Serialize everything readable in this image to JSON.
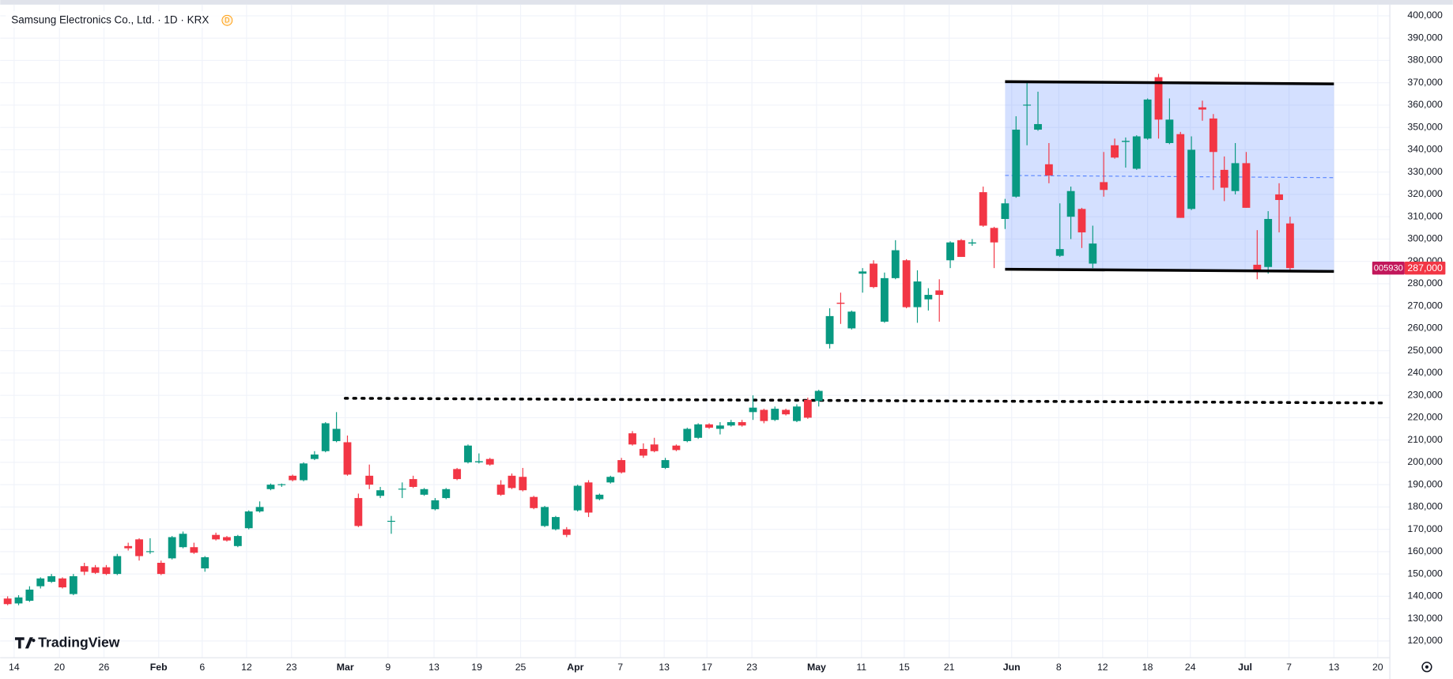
{
  "chart_data": {
    "type": "candlestick",
    "title": "Samsung Electronics Co., Ltd. · 1D · KRX",
    "badge": "D",
    "brand": "TradingView",
    "up_color": "#089981",
    "down_color": "#f23645",
    "grid": true,
    "xlim": [
      -0.68,
      126.1
    ],
    "ylim": [
      112500,
      405000
    ],
    "x": [
      0,
      1,
      2,
      3,
      4,
      5,
      6,
      7,
      8,
      9,
      10,
      11,
      12,
      13,
      14,
      15,
      16,
      17,
      18,
      19,
      20,
      21,
      22,
      23,
      24,
      25,
      26,
      27,
      28,
      29,
      30,
      31,
      32,
      33,
      34,
      35,
      36,
      37,
      38,
      39,
      40,
      41,
      42,
      43,
      44,
      45,
      46,
      47,
      48,
      49,
      50,
      51,
      52,
      53,
      54,
      55,
      56,
      57,
      58,
      59,
      60,
      61,
      62,
      63,
      64,
      65,
      66,
      67,
      68,
      69,
      70,
      71,
      72,
      73,
      74,
      75,
      76,
      77,
      78,
      79,
      80,
      81,
      82,
      83,
      84,
      85,
      86,
      87,
      88,
      89,
      90,
      91,
      92,
      93,
      94,
      95,
      96,
      97,
      98,
      99,
      100,
      101,
      102,
      103,
      104,
      105,
      106,
      107,
      108,
      109,
      110,
      111,
      112,
      113,
      114,
      115,
      116,
      117
    ],
    "open": [
      139000,
      136800,
      138000,
      144500,
      146500,
      148000,
      141000,
      153500,
      153000,
      153000,
      150000,
      162500,
      165500,
      160000,
      155000,
      157000,
      162000,
      162000,
      152500,
      167500,
      166500,
      162500,
      170500,
      178000,
      188000,
      189800,
      194000,
      192000,
      201500,
      205000,
      209500,
      209000,
      184000,
      194000,
      185000,
      173500,
      188000,
      192500,
      185500,
      179000,
      184000,
      197000,
      200000,
      200000,
      201500,
      190000,
      194000,
      193500,
      184500,
      171500,
      170000,
      170000,
      178500,
      191000,
      183500,
      191000,
      201000,
      213000,
      206000,
      208000,
      197500,
      207500,
      209500,
      211000,
      217000,
      215000,
      216500,
      218000,
      222500,
      223500,
      219000,
      223500,
      218500,
      228000,
      227500,
      253000,
      271500,
      260000,
      284500,
      289000,
      263000,
      282500,
      290500,
      269500,
      273000,
      277000,
      290500,
      299500,
      298000,
      321000,
      305000,
      309000,
      319000,
      360000,
      349000,
      333500,
      292500,
      310000,
      313500,
      289000,
      325500,
      342000,
      343500,
      331500,
      345000,
      372500,
      343000,
      347000,
      313500,
      359000,
      354000,
      331000,
      321500,
      334000,
      288500,
      287500,
      320000,
      307000
    ],
    "high": [
      140000,
      140500,
      144500,
      148500,
      150000,
      148500,
      150000,
      155000,
      154000,
      154000,
      159000,
      164000,
      166000,
      166000,
      156000,
      167000,
      169000,
      164000,
      158000,
      168500,
      167000,
      167500,
      178500,
      182500,
      190500,
      190500,
      194500,
      200000,
      205000,
      218000,
      222500,
      212000,
      186000,
      199000,
      189000,
      176000,
      191000,
      194000,
      188500,
      184000,
      188500,
      197500,
      208000,
      204000,
      202000,
      192000,
      195000,
      197500,
      185000,
      180500,
      176000,
      171000,
      190000,
      192000,
      186000,
      194000,
      202000,
      214000,
      208500,
      211000,
      202000,
      208000,
      215500,
      217500,
      217500,
      218000,
      219000,
      219000,
      230000,
      224000,
      225000,
      224000,
      226000,
      229000,
      232500,
      269000,
      276000,
      268000,
      287000,
      290500,
      285000,
      299500,
      291000,
      286000,
      278000,
      282000,
      299000,
      300000,
      300000,
      323500,
      305500,
      318000,
      355000,
      370000,
      366000,
      343000,
      316000,
      323500,
      314000,
      306000,
      339000,
      345000,
      345500,
      346500,
      363000,
      374000,
      363000,
      348000,
      346000,
      362000,
      356000,
      337000,
      343000,
      339000,
      304000,
      312500,
      325000,
      310000
    ],
    "low": [
      136000,
      136000,
      137500,
      143500,
      146000,
      143500,
      140500,
      149500,
      150000,
      149500,
      149500,
      160500,
      156000,
      159000,
      149500,
      156500,
      161500,
      159000,
      151000,
      165000,
      164500,
      162000,
      170000,
      177500,
      187500,
      189000,
      191500,
      191500,
      201000,
      204500,
      209000,
      194000,
      171000,
      188000,
      184000,
      168000,
      184000,
      188500,
      185000,
      178500,
      183500,
      192000,
      199500,
      199500,
      198500,
      185000,
      188000,
      187000,
      179000,
      171000,
      169500,
      166500,
      178000,
      175500,
      183000,
      190500,
      195000,
      207500,
      202000,
      204500,
      197000,
      205000,
      209000,
      210500,
      215000,
      212500,
      216000,
      216000,
      219000,
      217500,
      218500,
      221000,
      218000,
      219500,
      225000,
      251000,
      262000,
      259500,
      276000,
      278000,
      262500,
      282000,
      269000,
      262500,
      268000,
      263000,
      287000,
      292000,
      297000,
      305500,
      287000,
      304500,
      318500,
      342000,
      348500,
      325000,
      292000,
      300000,
      296000,
      287000,
      319000,
      336000,
      332000,
      331000,
      344500,
      345000,
      342500,
      309500,
      313000,
      353000,
      322000,
      317000,
      320000,
      314000,
      282000,
      284500,
      303000,
      286000
    ],
    "close": [
      136500,
      139500,
      143000,
      148000,
      149000,
      144000,
      149000,
      151000,
      150500,
      150000,
      158000,
      161500,
      158000,
      160200,
      150000,
      166500,
      168000,
      159500,
      157500,
      165500,
      165000,
      167000,
      178000,
      180000,
      190000,
      190200,
      192000,
      199500,
      203500,
      217500,
      215000,
      194500,
      171500,
      190000,
      187500,
      173800,
      188200,
      189000,
      188000,
      183000,
      188000,
      192500,
      207500,
      200500,
      199000,
      185500,
      188500,
      187500,
      179500,
      180000,
      175500,
      167500,
      189500,
      177500,
      185500,
      193500,
      195500,
      208000,
      203000,
      205000,
      201000,
      205500,
      215000,
      217000,
      215500,
      216500,
      218000,
      216500,
      224500,
      218500,
      224000,
      221500,
      225000,
      220000,
      232000,
      265500,
      271000,
      267500,
      285500,
      278500,
      282500,
      295000,
      269500,
      281000,
      275000,
      275000,
      298500,
      292000,
      298500,
      306000,
      298500,
      316000,
      349000,
      360200,
      351500,
      328500,
      295500,
      321500,
      303000,
      298000,
      322000,
      336500,
      344000,
      346000,
      362500,
      353500,
      353500,
      309500,
      340000,
      358000,
      339000,
      323000,
      334000,
      314000,
      285500,
      309000,
      317500,
      287000
    ],
    "yticks": [
      {
        "value": 120000,
        "label": "120,000"
      },
      {
        "value": 130000,
        "label": "130,000"
      },
      {
        "value": 140000,
        "label": "140,000"
      },
      {
        "value": 150000,
        "label": "150,000"
      },
      {
        "value": 160000,
        "label": "160,000"
      },
      {
        "value": 170000,
        "label": "170,000"
      },
      {
        "value": 180000,
        "label": "180,000"
      },
      {
        "value": 190000,
        "label": "190,000"
      },
      {
        "value": 200000,
        "label": "200,000"
      },
      {
        "value": 210000,
        "label": "210,000"
      },
      {
        "value": 220000,
        "label": "220,000"
      },
      {
        "value": 230000,
        "label": "230,000"
      },
      {
        "value": 240000,
        "label": "240,000"
      },
      {
        "value": 250000,
        "label": "250,000"
      },
      {
        "value": 260000,
        "label": "260,000"
      },
      {
        "value": 270000,
        "label": "270,000"
      },
      {
        "value": 280000,
        "label": "280,000"
      },
      {
        "value": 290000,
        "label": "290,000"
      },
      {
        "value": 300000,
        "label": "300,000"
      },
      {
        "value": 310000,
        "label": "310,000"
      },
      {
        "value": 320000,
        "label": "320,000"
      },
      {
        "value": 330000,
        "label": "330,000"
      },
      {
        "value": 340000,
        "label": "340,000"
      },
      {
        "value": 350000,
        "label": "350,000"
      },
      {
        "value": 360000,
        "label": "360,000"
      },
      {
        "value": 370000,
        "label": "370,000"
      },
      {
        "value": 380000,
        "label": "380,000"
      },
      {
        "value": 390000,
        "label": "390,000"
      },
      {
        "value": 400000,
        "label": "400,000"
      }
    ],
    "xticks": [
      {
        "value": 0.59,
        "label": "14"
      },
      {
        "value": 4.73,
        "label": "20"
      },
      {
        "value": 8.79,
        "label": "26"
      },
      {
        "value": 13.78,
        "label": "Feb"
      },
      {
        "value": 17.75,
        "label": "6"
      },
      {
        "value": 21.8,
        "label": "12"
      },
      {
        "value": 25.9,
        "label": "23"
      },
      {
        "value": 30.8,
        "label": "Mar"
      },
      {
        "value": 34.7,
        "label": "9"
      },
      {
        "value": 38.9,
        "label": "13"
      },
      {
        "value": 42.8,
        "label": "19"
      },
      {
        "value": 46.8,
        "label": "25"
      },
      {
        "value": 51.8,
        "label": "Apr"
      },
      {
        "value": 55.9,
        "label": "7"
      },
      {
        "value": 59.9,
        "label": "13"
      },
      {
        "value": 63.8,
        "label": "17"
      },
      {
        "value": 67.9,
        "label": "23"
      },
      {
        "value": 73.8,
        "label": "May"
      },
      {
        "value": 77.9,
        "label": "11"
      },
      {
        "value": 81.8,
        "label": "15"
      },
      {
        "value": 85.9,
        "label": "21"
      },
      {
        "value": 91.6,
        "label": "Jun"
      },
      {
        "value": 95.9,
        "label": "8"
      },
      {
        "value": 99.9,
        "label": "12"
      },
      {
        "value": 104,
        "label": "18"
      },
      {
        "value": 107.9,
        "label": "24"
      },
      {
        "value": 112.9,
        "label": "Jul"
      },
      {
        "value": 116.9,
        "label": "7"
      },
      {
        "value": 121,
        "label": "13"
      },
      {
        "value": 125,
        "label": "20"
      }
    ],
    "channel": {
      "x": [
        91,
        121
      ],
      "top": [
        370500,
        369500
      ],
      "bottom": [
        286500,
        285500
      ],
      "middle": [
        328500,
        327500
      ],
      "color": "#2962ff"
    },
    "level": {
      "x": [
        30.8,
        125.7
      ],
      "values": [
        228700,
        226600
      ]
    },
    "price_label": {
      "symbol": "005930",
      "value": 287000,
      "label": "287,000"
    }
  }
}
